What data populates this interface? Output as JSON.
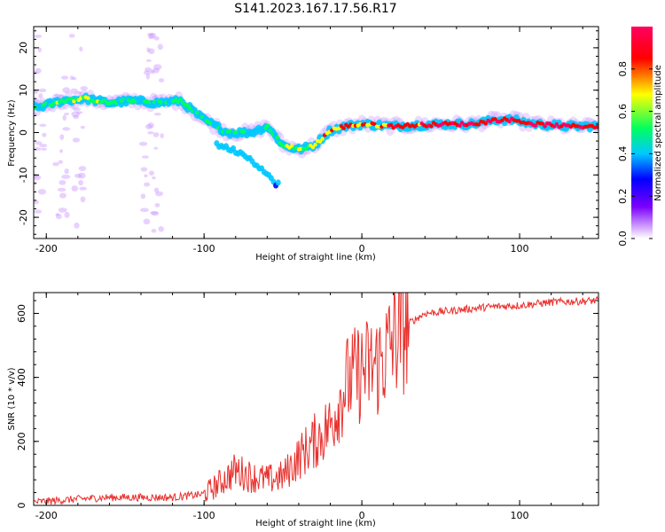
{
  "title": "S141.2023.167.17.56.R17",
  "chart_data": [
    {
      "type": "heatmap",
      "xlabel": "Height of straight line (km)",
      "ylabel": "Frequency (Hz)",
      "xlim": [
        -208,
        150
      ],
      "ylim": [
        -25,
        25
      ],
      "xticks": [
        -200,
        -100,
        0,
        100
      ],
      "yticks": [
        -20,
        -10,
        0,
        10,
        20
      ],
      "colorbar": {
        "label": "Normalized spectral amplitude",
        "range": [
          0.0,
          1.0
        ],
        "ticks": [
          "0.0",
          "0.2",
          "0.4",
          "0.6",
          "0.8"
        ],
        "colors": [
          "#ffffff",
          "#cc99ff",
          "#7b00ff",
          "#0000ff",
          "#00c8ff",
          "#00ff60",
          "#ffff00",
          "#ff0000",
          "#ff0060"
        ]
      },
      "ridge": [
        {
          "x": -205,
          "y": 6,
          "a": 0.5
        },
        {
          "x": -190,
          "y": 7.5,
          "a": 0.55
        },
        {
          "x": -175,
          "y": 8,
          "a": 0.55
        },
        {
          "x": -160,
          "y": 7,
          "a": 0.5
        },
        {
          "x": -145,
          "y": 7.5,
          "a": 0.5
        },
        {
          "x": -130,
          "y": 7,
          "a": 0.45
        },
        {
          "x": -115,
          "y": 7.5,
          "a": 0.5
        },
        {
          "x": -100,
          "y": 3,
          "a": 0.45
        },
        {
          "x": -85,
          "y": 0,
          "a": 0.5
        },
        {
          "x": -70,
          "y": 0,
          "a": 0.45
        },
        {
          "x": -60,
          "y": 1.5,
          "a": 0.45
        },
        {
          "x": -50,
          "y": -3,
          "a": 0.5
        },
        {
          "x": -40,
          "y": -4,
          "a": 0.55
        },
        {
          "x": -30,
          "y": -3,
          "a": 0.6
        },
        {
          "x": -20,
          "y": 0.5,
          "a": 0.7
        },
        {
          "x": -10,
          "y": 1.5,
          "a": 0.75
        },
        {
          "x": 0,
          "y": 2,
          "a": 0.8
        },
        {
          "x": 20,
          "y": 1.5,
          "a": 0.85
        },
        {
          "x": 50,
          "y": 2,
          "a": 0.9
        },
        {
          "x": 70,
          "y": 2,
          "a": 0.95
        },
        {
          "x": 85,
          "y": 3,
          "a": 1.0
        },
        {
          "x": 95,
          "y": 3,
          "a": 0.95
        },
        {
          "x": 110,
          "y": 2,
          "a": 0.95
        },
        {
          "x": 130,
          "y": 1.5,
          "a": 0.9
        },
        {
          "x": 150,
          "y": 1.5,
          "a": 0.9
        }
      ],
      "branch": [
        {
          "x": -90,
          "y": -3,
          "a": 0.35
        },
        {
          "x": -75,
          "y": -5,
          "a": 0.35
        },
        {
          "x": -65,
          "y": -8,
          "a": 0.35
        },
        {
          "x": -55,
          "y": -12,
          "a": 0.3
        }
      ]
    },
    {
      "type": "line",
      "xlabel": "Height of straight line (km)",
      "ylabel": "SNR (10 * v/v)",
      "xlim": [
        -208,
        150
      ],
      "ylim": [
        0,
        665
      ],
      "xticks": [
        -200,
        -100,
        0,
        100
      ],
      "yticks": [
        0,
        200,
        400,
        600
      ],
      "color": "#e8312e",
      "series": [
        {
          "x": -208,
          "y": 10
        },
        {
          "x": -180,
          "y": 20
        },
        {
          "x": -160,
          "y": 25
        },
        {
          "x": -140,
          "y": 25
        },
        {
          "x": -120,
          "y": 25
        },
        {
          "x": -100,
          "y": 35
        },
        {
          "x": -90,
          "y": 70
        },
        {
          "x": -80,
          "y": 110
        },
        {
          "x": -70,
          "y": 90
        },
        {
          "x": -60,
          "y": 80
        },
        {
          "x": -50,
          "y": 90
        },
        {
          "x": -40,
          "y": 150
        },
        {
          "x": -30,
          "y": 200
        },
        {
          "x": -20,
          "y": 250
        },
        {
          "x": -15,
          "y": 320
        },
        {
          "x": -10,
          "y": 380
        },
        {
          "x": -5,
          "y": 400
        },
        {
          "x": 0,
          "y": 420
        },
        {
          "x": 5,
          "y": 430
        },
        {
          "x": 10,
          "y": 440
        },
        {
          "x": 15,
          "y": 470
        },
        {
          "x": 20,
          "y": 520
        },
        {
          "x": 30,
          "y": 570
        },
        {
          "x": 40,
          "y": 600
        },
        {
          "x": 60,
          "y": 610
        },
        {
          "x": 80,
          "y": 620
        },
        {
          "x": 100,
          "y": 625
        },
        {
          "x": 120,
          "y": 635
        },
        {
          "x": 150,
          "y": 640
        }
      ]
    }
  ]
}
